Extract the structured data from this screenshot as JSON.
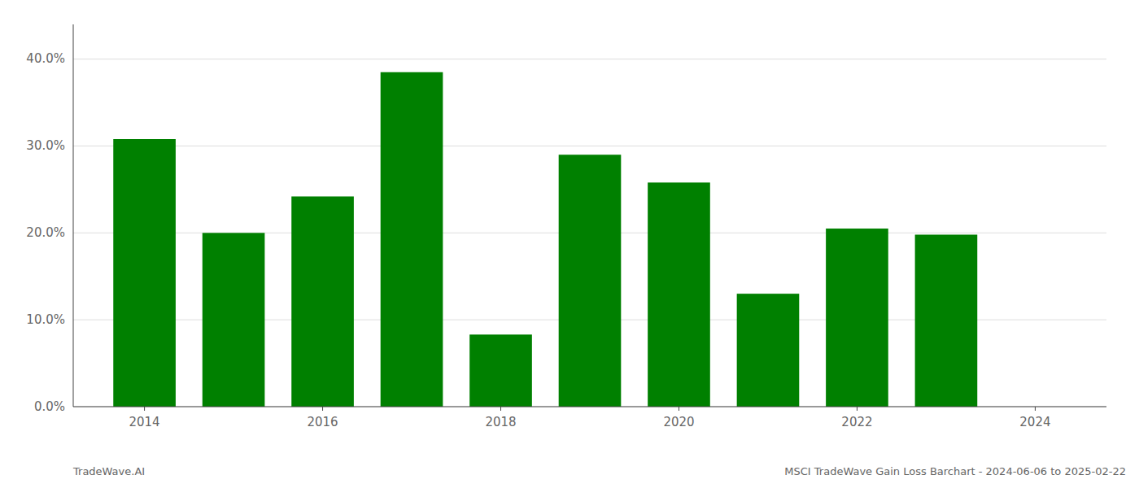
{
  "chart_data": {
    "type": "bar",
    "x": [
      2014,
      2015,
      2016,
      2017,
      2018,
      2019,
      2020,
      2021,
      2022,
      2023
    ],
    "values": [
      0.308,
      0.2,
      0.242,
      0.385,
      0.083,
      0.29,
      0.258,
      0.13,
      0.205,
      0.198
    ],
    "color": "#008000",
    "xlim": [
      2013.2,
      2024.8
    ],
    "xticks": [
      2014,
      2016,
      2018,
      2020,
      2022,
      2024
    ],
    "ylim": [
      0,
      0.44
    ],
    "yticks": [
      {
        "value": 0.0,
        "label": "0.0%"
      },
      {
        "value": 0.1,
        "label": "10.0%"
      },
      {
        "value": 0.2,
        "label": "20.0%"
      },
      {
        "value": 0.3,
        "label": "30.0%"
      },
      {
        "value": 0.4,
        "label": "40.0%"
      }
    ],
    "grid": true,
    "annotations": [
      "TradeWave.AI",
      "MSCI TradeWave Gain Loss Barchart - 2024-06-06 to 2025-02-22"
    ]
  }
}
